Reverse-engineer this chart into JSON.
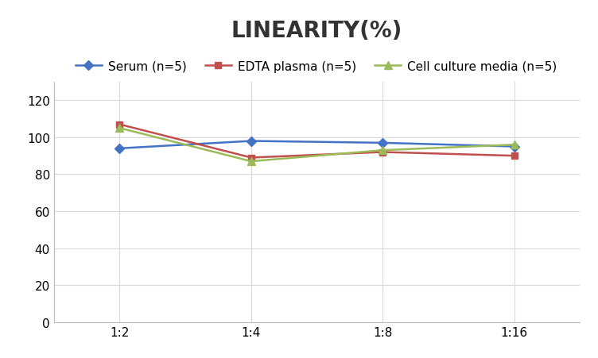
{
  "title": "LINEARITY(%)",
  "x_labels": [
    "1:2",
    "1:4",
    "1:8",
    "1:16"
  ],
  "x_positions": [
    0,
    1,
    2,
    3
  ],
  "series": [
    {
      "name": "Serum (n=5)",
      "values": [
        94,
        98,
        97,
        95
      ],
      "color": "#4472C4",
      "marker": "D",
      "markersize": 6
    },
    {
      "name": "EDTA plasma (n=5)",
      "values": [
        107,
        89,
        92,
        90
      ],
      "color": "#C0504D",
      "marker": "s",
      "markersize": 6
    },
    {
      "name": "Cell culture media (n=5)",
      "values": [
        105,
        87,
        93,
        96
      ],
      "color": "#9BBB59",
      "marker": "^",
      "markersize": 7
    }
  ],
  "ylim": [
    0,
    130
  ],
  "yticks": [
    0,
    20,
    40,
    60,
    80,
    100,
    120
  ],
  "grid_color": "#D9D9D9",
  "background_color": "#FFFFFF",
  "title_fontsize": 20,
  "legend_fontsize": 11,
  "tick_fontsize": 11
}
